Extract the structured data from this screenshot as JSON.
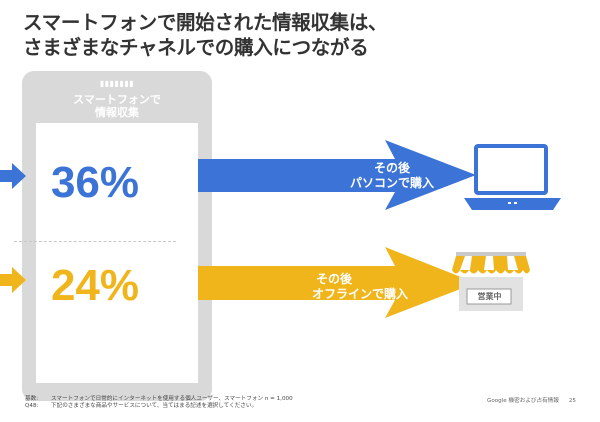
{
  "title": {
    "line1": "スマートフォンで開始された情報収集は、",
    "line2": "さまざまなチャネルでの購入につながる"
  },
  "phone": {
    "header_line1": "スマートフォンで",
    "header_line2": "情報収集"
  },
  "stats": [
    {
      "percent": "36%",
      "label_line1": "その後",
      "label_line2": "パソコンで購入",
      "color": "#3b74d6",
      "icon": "laptop-icon"
    },
    {
      "percent": "24%",
      "label_line1": "その後",
      "label_line2": "オフラインで購入",
      "color": "#f1b51c",
      "icon": "store-icon"
    }
  ],
  "store_sign": "営業中",
  "footer": {
    "base_label": "基数:",
    "base_text": "スマートフォンで日常的にインターネットを使用する個人ユーザー、スマートフォン n = 1,000",
    "q_label": "Q48:",
    "q_text": "下記のさまざまな商品やサービスについて、当てはまる記述を選択してください。",
    "source": "Google 機密および占有情報",
    "page": "25"
  }
}
